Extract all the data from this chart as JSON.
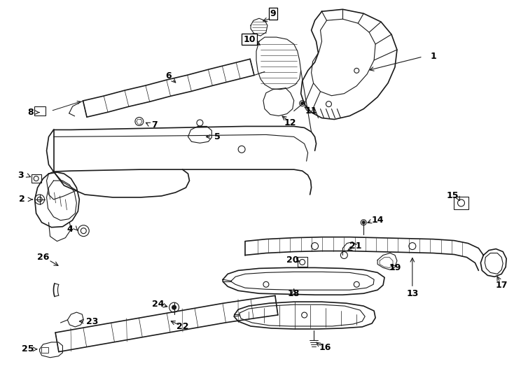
{
  "background_color": "#ffffff",
  "line_color": "#1a1a1a",
  "fig_width": 7.34,
  "fig_height": 5.4,
  "dpi": 100
}
